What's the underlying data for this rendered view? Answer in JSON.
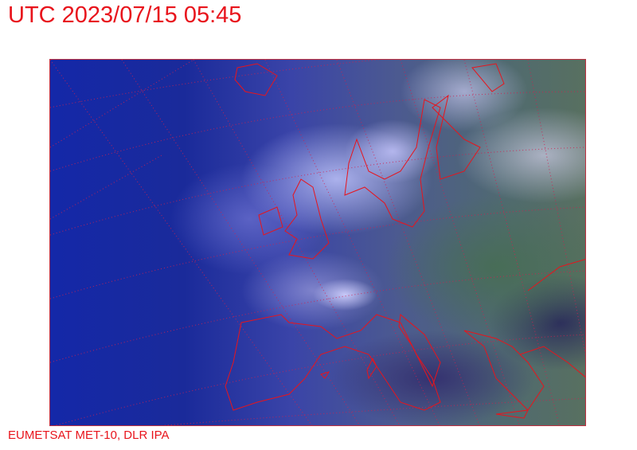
{
  "header": {
    "title": "UTC 2023/07/15 05:45"
  },
  "footer": {
    "credit": "EUMETSAT MET-10, DLR IPA"
  },
  "map": {
    "type": "satellite-image",
    "region": "Europe / North Atlantic",
    "coastline_color": "#e8141c",
    "graticule_color": "#d02050",
    "graticule_style": "dotted"
  }
}
